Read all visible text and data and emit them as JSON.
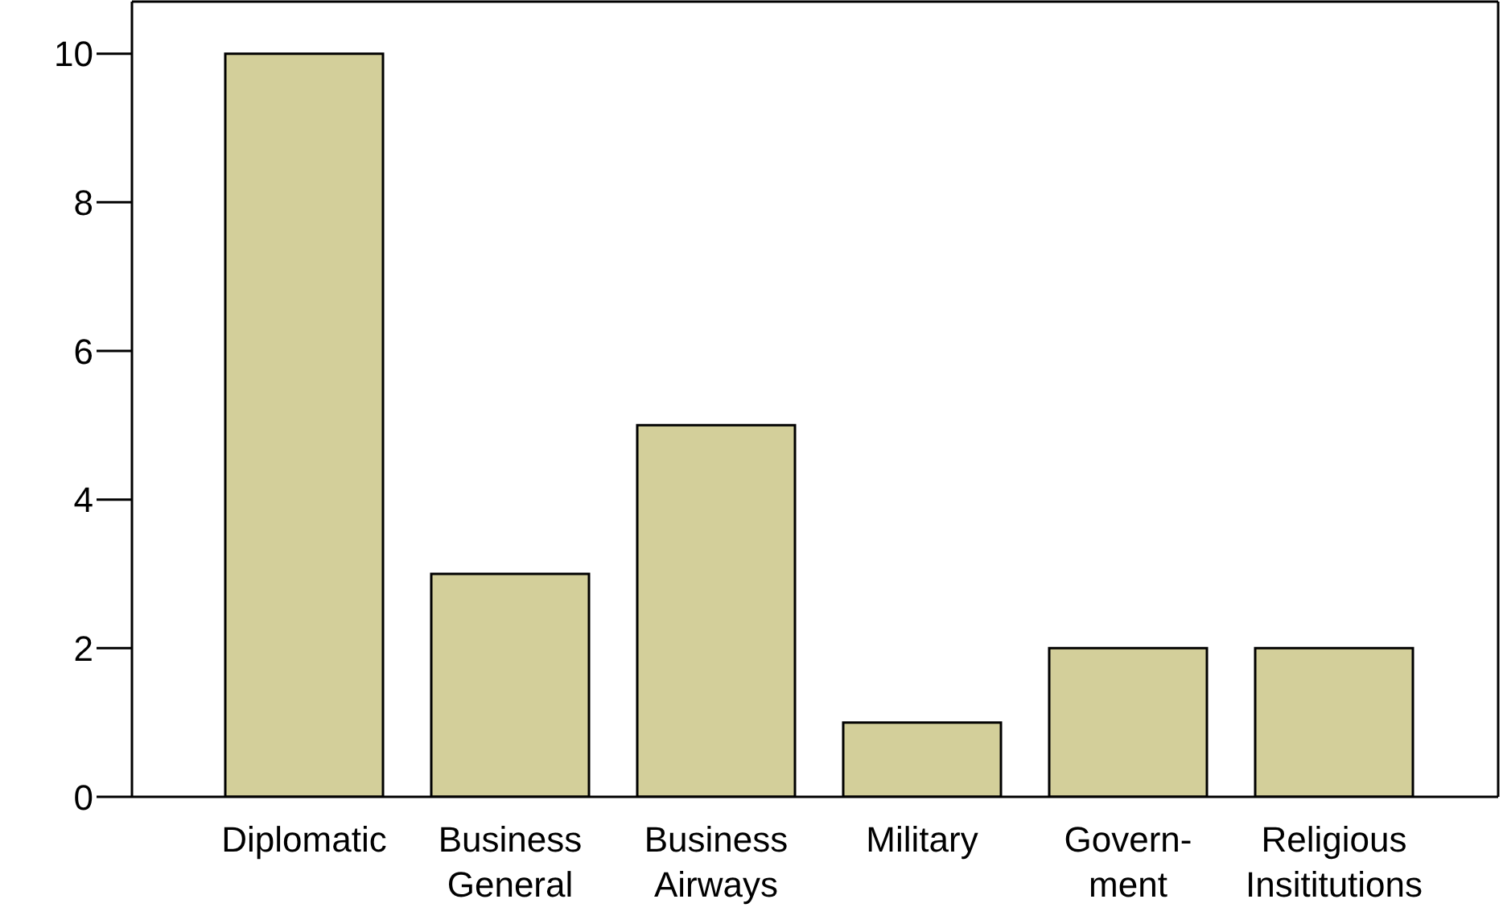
{
  "chart_data": {
    "type": "bar",
    "categories": [
      "Diplomatic",
      "Business\nGeneral",
      "Business\nAirways",
      "Military",
      "Govern-\nment",
      "Religious\nInsititutions"
    ],
    "values": [
      10,
      3,
      5,
      1,
      2,
      2
    ],
    "color": "#d3cf9a",
    "ylim": [
      0,
      10.7
    ],
    "yticks": [
      0,
      2,
      4,
      6,
      8,
      10
    ],
    "grid": false,
    "legend": false
  }
}
